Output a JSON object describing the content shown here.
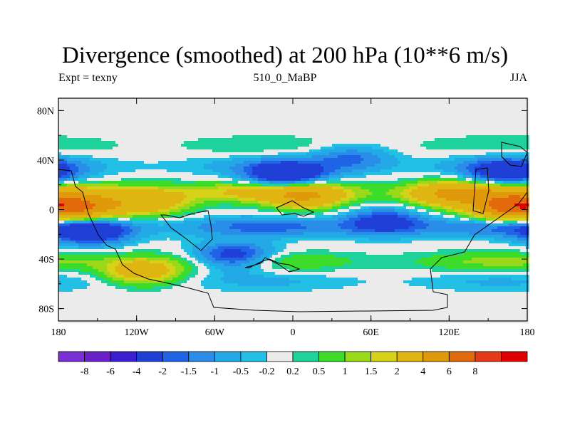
{
  "title": "Divergence (smoothed) at 200 hPa (10**6 m/s)",
  "subtitle_left": "Expt = texny",
  "subtitle_center": "510_0_MaBP",
  "subtitle_right": "JJA",
  "chart_data": {
    "type": "heatmap",
    "title": "Divergence (smoothed) at 200 hPa (10**6 m/s)",
    "xlim": [
      -180,
      180
    ],
    "ylim": [
      -90,
      90
    ],
    "x_ticks": [
      {
        "value": -180,
        "label": "180"
      },
      {
        "value": -120,
        "label": "120W"
      },
      {
        "value": -60,
        "label": "60W"
      },
      {
        "value": 0,
        "label": "0"
      },
      {
        "value": 60,
        "label": "60E"
      },
      {
        "value": 120,
        "label": "120E"
      },
      {
        "value": 180,
        "label": "180"
      }
    ],
    "y_ticks": [
      {
        "value": 80,
        "label": "80N"
      },
      {
        "value": 40,
        "label": "40N"
      },
      {
        "value": 0,
        "label": "0"
      },
      {
        "value": -40,
        "label": "40S"
      },
      {
        "value": -80,
        "label": "80S"
      }
    ],
    "colorbar": {
      "colors": [
        "#7b2fd6",
        "#6a1fc9",
        "#3a1fd0",
        "#1f3fd6",
        "#1f63e6",
        "#2a8ee8",
        "#23a9e6",
        "#22c0e4",
        "#ebebeb",
        "#1fd19a",
        "#3ddc2a",
        "#9ad81a",
        "#d6d21a",
        "#dfb512",
        "#e0990a",
        "#e26a0a",
        "#e6391a",
        "#e00000"
      ],
      "labels": [
        "-8",
        "-6",
        "-4",
        "-2",
        "-1.5",
        "-1",
        "-0.5",
        "-0.2",
        "0.2",
        "0.5",
        "1",
        "1.5",
        "2",
        "4",
        "6",
        "8"
      ]
    },
    "field": {
      "zones": [
        {
          "lat": 52,
          "value": 0.5
        },
        {
          "lat": 35,
          "value": -0.8
        },
        {
          "lat": 14,
          "value": 2.5
        },
        {
          "lat": -14,
          "value": -1.8
        },
        {
          "lat": -42,
          "value": 1.2
        },
        {
          "lat": -58,
          "value": -0.6
        }
      ],
      "blobs": [
        {
          "lon": -160,
          "lat": 2,
          "value": 5
        },
        {
          "lon": -110,
          "lat": 6,
          "value": 3
        },
        {
          "lon": 10,
          "lat": 10,
          "value": 3
        },
        {
          "lon": 120,
          "lat": 12,
          "value": 3
        },
        {
          "lon": 165,
          "lat": 2,
          "value": 6
        },
        {
          "lon": -155,
          "lat": -18,
          "value": -3
        },
        {
          "lon": -45,
          "lat": -38,
          "value": -3
        },
        {
          "lon": -5,
          "lat": 28,
          "value": -3.5
        },
        {
          "lon": 70,
          "lat": -10,
          "value": -2.5
        },
        {
          "lon": 165,
          "lat": 30,
          "value": -3
        },
        {
          "lon": -115,
          "lat": -50,
          "value": 3
        },
        {
          "lon": 45,
          "lat": 42,
          "value": -1.5
        }
      ]
    }
  }
}
